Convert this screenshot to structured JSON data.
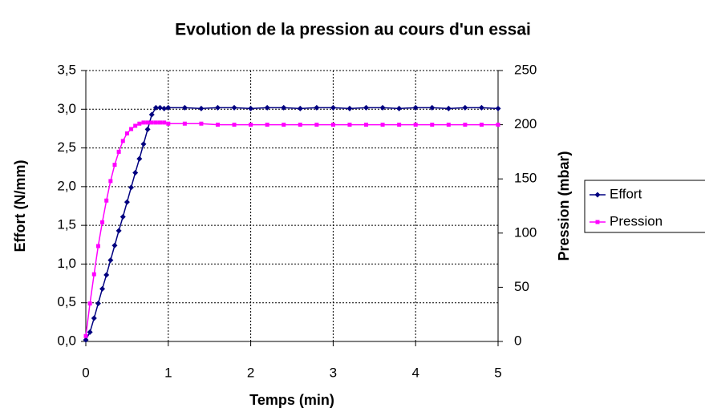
{
  "chart_data": {
    "type": "line",
    "title": "Evolution de la pression au cours d'un essai",
    "x_label": "Temps (min)",
    "y_label": "Effort (N/mm)",
    "y2_label": "Pression (mbar)",
    "x": [
      0,
      0.05,
      0.1,
      0.15,
      0.2,
      0.25,
      0.3,
      0.35,
      0.4,
      0.45,
      0.5,
      0.55,
      0.6,
      0.65,
      0.7,
      0.75,
      0.8,
      0.85,
      0.9,
      0.95,
      1.0,
      1.2,
      1.4,
      1.6,
      1.8,
      2.0,
      2.2,
      2.4,
      2.6,
      2.8,
      3.0,
      3.2,
      3.4,
      3.6,
      3.8,
      4.0,
      4.2,
      4.4,
      4.6,
      4.8,
      5.0
    ],
    "series": [
      {
        "name": "Effort",
        "color": "#000080",
        "marker": "diamond",
        "values": [
          0.02,
          0.12,
          0.3,
          0.49,
          0.68,
          0.86,
          1.05,
          1.24,
          1.43,
          1.61,
          1.8,
          1.99,
          2.18,
          2.36,
          2.55,
          2.74,
          2.93,
          3.02,
          3.02,
          3.01,
          3.02,
          3.02,
          3.01,
          3.02,
          3.02,
          3.01,
          3.02,
          3.02,
          3.01,
          3.02,
          3.02,
          3.01,
          3.02,
          3.02,
          3.01,
          3.02,
          3.02,
          3.01,
          3.02,
          3.02,
          3.01
        ]
      },
      {
        "name": "Pression",
        "color": "#ff00ff",
        "marker": "square",
        "axis": "y2",
        "values": [
          5,
          35,
          62,
          88,
          110,
          130,
          148,
          163,
          175,
          185,
          192,
          196,
          199,
          201,
          202,
          202,
          202,
          202,
          202,
          202,
          201,
          201,
          201,
          200,
          200,
          200,
          200,
          200,
          200,
          200,
          200,
          200,
          200,
          200,
          200,
          200,
          200,
          200,
          200,
          200,
          200
        ]
      }
    ],
    "xlim": [
      0,
      5
    ],
    "xticks": [
      0,
      1,
      2,
      3,
      4,
      5
    ],
    "ylim": [
      0,
      3.5
    ],
    "yticks": [
      {
        "value": 0,
        "label": "0,0"
      },
      {
        "value": 0.5,
        "label": "0,5"
      },
      {
        "value": 1,
        "label": "1,0"
      },
      {
        "value": 1.5,
        "label": "1,5"
      },
      {
        "value": 2,
        "label": "2,0"
      },
      {
        "value": 2.5,
        "label": "2,5"
      },
      {
        "value": 3,
        "label": "3,0"
      },
      {
        "value": 3.5,
        "label": "3,5"
      }
    ],
    "y2lim": [
      0,
      250
    ],
    "y2ticks": [
      0,
      50,
      100,
      150,
      200,
      250
    ],
    "grid": true,
    "legend": "right"
  }
}
